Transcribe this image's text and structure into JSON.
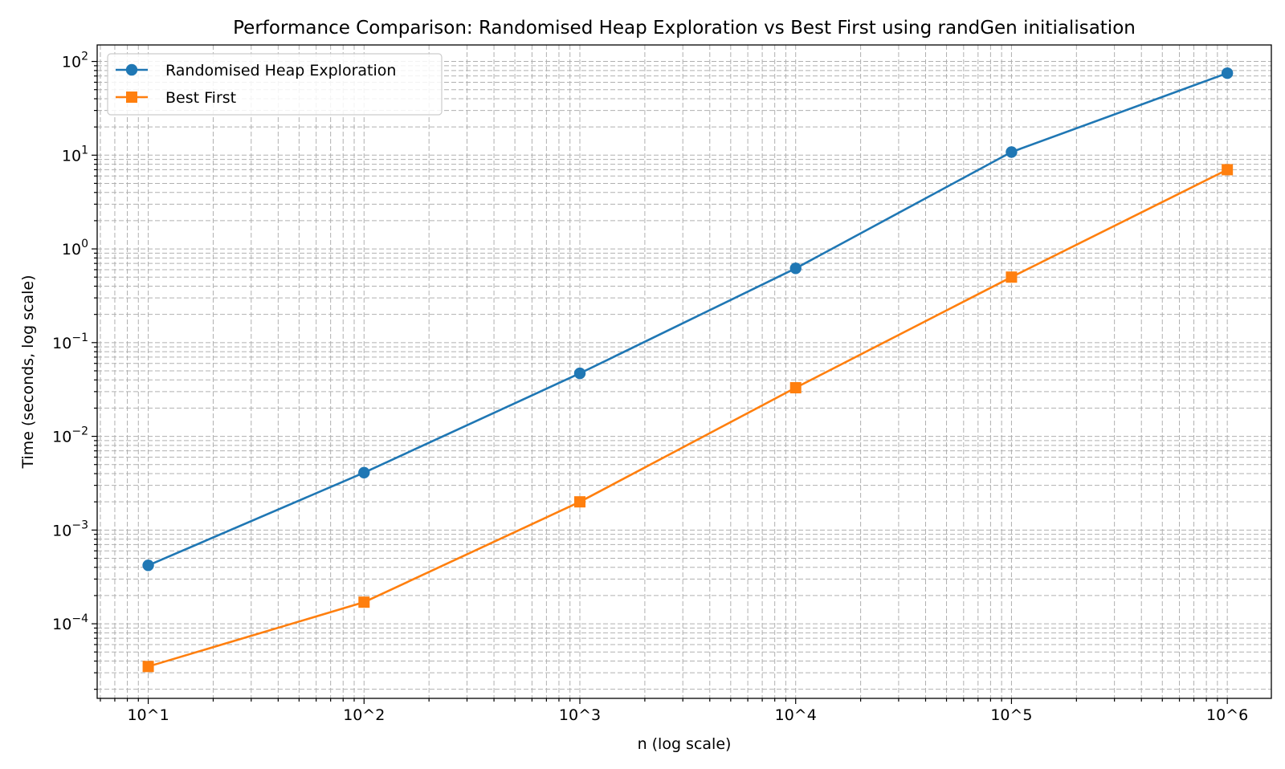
{
  "chart_data": {
    "type": "line",
    "title": "Performance Comparison: Randomised Heap Exploration vs Best First using randGen initialisation",
    "xlabel": "n (log scale)",
    "ylabel": "Time (seconds, log scale)",
    "x_scale": "log",
    "y_scale": "log",
    "x": [
      10,
      100,
      1000,
      10000,
      100000,
      1000000
    ],
    "x_tick_labels": [
      "10^1",
      "10^2",
      "10^3",
      "10^4",
      "10^5",
      "10^6"
    ],
    "y_tick_labels": [
      {
        "base": "10",
        "exp": "−4"
      },
      {
        "base": "10",
        "exp": "−3"
      },
      {
        "base": "10",
        "exp": "−2"
      },
      {
        "base": "10",
        "exp": "−1"
      },
      {
        "base": "10",
        "exp": "0"
      },
      {
        "base": "10",
        "exp": "1"
      },
      {
        "base": "10",
        "exp": "2"
      }
    ],
    "xlim": [
      5.8,
      1600000
    ],
    "ylim": [
      1.6e-05,
      150
    ],
    "grid": true,
    "grid_style": "dashed",
    "legend_position": "top-left",
    "series": [
      {
        "name": "Randomised Heap Exploration",
        "color": "#1f77b4",
        "marker": "circle",
        "values": [
          0.00042,
          0.0041,
          0.047,
          0.62,
          10.8,
          75
        ]
      },
      {
        "name": "Best First",
        "color": "#ff7f0e",
        "marker": "square",
        "values": [
          3.5e-05,
          0.00017,
          0.002,
          0.033,
          0.5,
          7
        ]
      }
    ]
  }
}
